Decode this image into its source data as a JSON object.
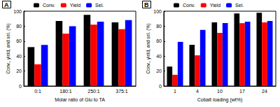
{
  "chart_data": [
    {
      "type": "bar",
      "title": "A",
      "x_label": "Molar ratio of Glu to TA",
      "y_label": "Conv., yield, and sel. (%)",
      "categories": [
        "0:1",
        "180:1",
        "250:1",
        "375:1"
      ],
      "series": [
        {
          "name": "Conv.",
          "color": "#000000",
          "values": [
            52,
            87,
            95,
            85
          ]
        },
        {
          "name": "Yield",
          "color": "#ff0000",
          "values": [
            29,
            70,
            82,
            76
          ]
        },
        {
          "name": "Sel.",
          "color": "#0000ff",
          "values": [
            55,
            80,
            86,
            88
          ]
        }
      ],
      "ylim": [
        0,
        100
      ],
      "yticks": [
        0,
        20,
        40,
        60,
        80,
        100
      ],
      "grid": false,
      "legend": "top"
    },
    {
      "type": "bar",
      "title": "B",
      "x_label": "Cobalt loading (wt%)",
      "y_label": "Conv., yield, and sel. (%)",
      "categories": [
        "1",
        "4",
        "10",
        "17",
        "24"
      ],
      "series": [
        {
          "name": "Conv.",
          "color": "#000000",
          "values": [
            26,
            55,
            85,
            97,
            98
          ]
        },
        {
          "name": "Yield",
          "color": "#ff0000",
          "values": [
            15,
            41,
            71,
            84,
            85
          ]
        },
        {
          "name": "Sel.",
          "color": "#0000ff",
          "values": [
            59,
            75,
            84,
            86,
            87
          ]
        }
      ],
      "ylim": [
        0,
        100
      ],
      "yticks": [
        0,
        20,
        40,
        60,
        80,
        100
      ],
      "grid": false,
      "legend": "top"
    }
  ]
}
